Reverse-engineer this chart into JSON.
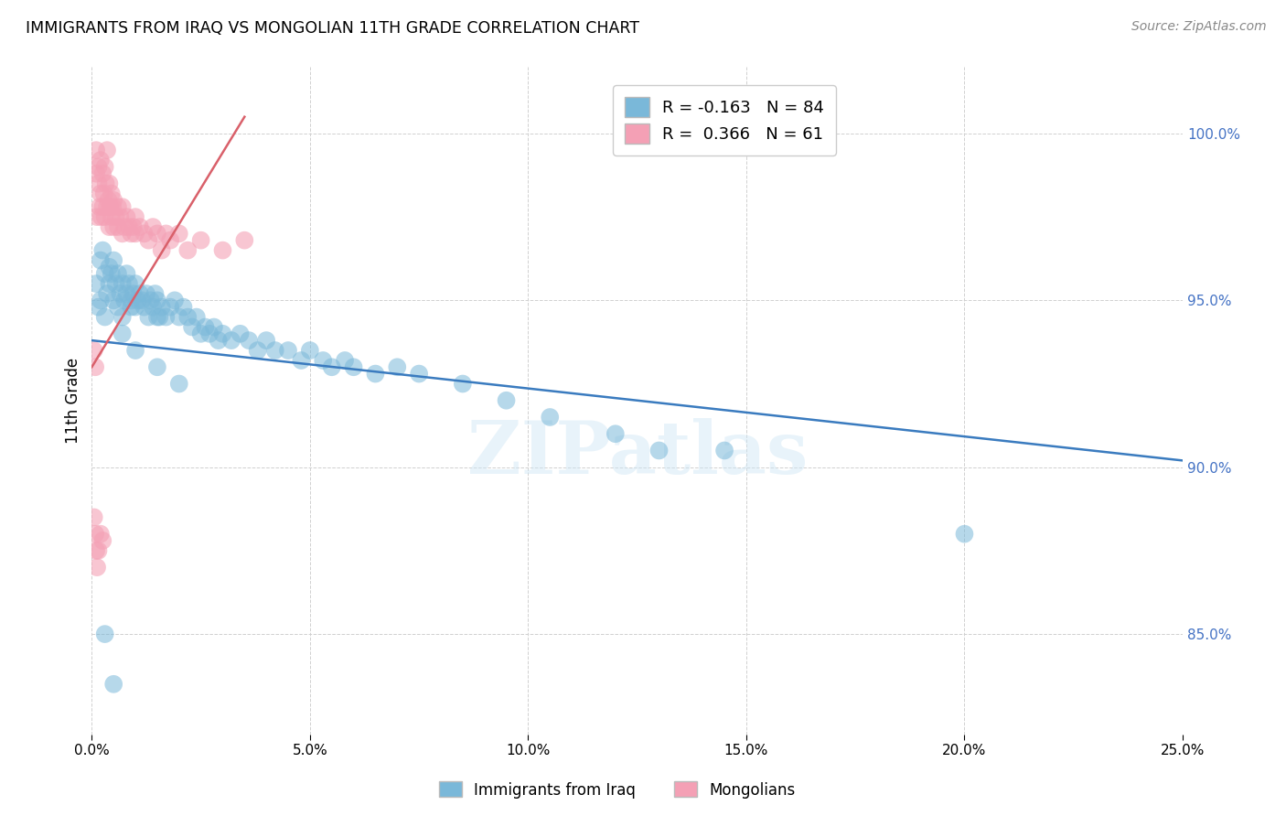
{
  "title": "IMMIGRANTS FROM IRAQ VS MONGOLIAN 11TH GRADE CORRELATION CHART",
  "source": "Source: ZipAtlas.com",
  "ylabel": "11th Grade",
  "ylabel_values": [
    85.0,
    90.0,
    95.0,
    100.0
  ],
  "xlim": [
    0.0,
    25.0
  ],
  "ylim": [
    82.0,
    102.0
  ],
  "legend_blue_r": "-0.163",
  "legend_blue_n": "84",
  "legend_pink_r": "0.366",
  "legend_pink_n": "61",
  "blue_color": "#7ab8d9",
  "pink_color": "#f4a0b5",
  "blue_line_color": "#3a7bbf",
  "pink_line_color": "#d9606a",
  "watermark": "ZIPatlas",
  "blue_scatter_x": [
    0.1,
    0.15,
    0.2,
    0.2,
    0.25,
    0.3,
    0.3,
    0.35,
    0.4,
    0.4,
    0.45,
    0.5,
    0.5,
    0.55,
    0.6,
    0.6,
    0.65,
    0.7,
    0.7,
    0.75,
    0.8,
    0.8,
    0.85,
    0.9,
    0.9,
    0.95,
    1.0,
    1.0,
    1.05,
    1.1,
    1.15,
    1.2,
    1.25,
    1.3,
    1.35,
    1.4,
    1.45,
    1.5,
    1.55,
    1.6,
    1.7,
    1.8,
    1.9,
    2.0,
    2.1,
    2.2,
    2.3,
    2.4,
    2.5,
    2.6,
    2.7,
    2.8,
    2.9,
    3.0,
    3.2,
    3.4,
    3.6,
    3.8,
    4.0,
    4.2,
    4.5,
    4.8,
    5.0,
    5.3,
    5.5,
    5.8,
    6.0,
    6.5,
    7.0,
    7.5,
    1.5,
    2.0,
    8.5,
    9.5,
    10.5,
    12.0,
    13.0,
    14.5,
    20.0,
    0.3,
    0.5,
    0.7,
    1.0,
    1.5
  ],
  "blue_scatter_y": [
    95.5,
    94.8,
    96.2,
    95.0,
    96.5,
    95.8,
    94.5,
    95.2,
    96.0,
    95.5,
    95.8,
    96.2,
    95.0,
    95.5,
    95.8,
    94.8,
    95.2,
    95.5,
    94.5,
    95.0,
    95.8,
    95.2,
    95.5,
    95.0,
    94.8,
    95.2,
    95.5,
    94.8,
    95.0,
    95.2,
    95.0,
    94.8,
    95.2,
    94.5,
    95.0,
    94.8,
    95.2,
    95.0,
    94.5,
    94.8,
    94.5,
    94.8,
    95.0,
    94.5,
    94.8,
    94.5,
    94.2,
    94.5,
    94.0,
    94.2,
    94.0,
    94.2,
    93.8,
    94.0,
    93.8,
    94.0,
    93.8,
    93.5,
    93.8,
    93.5,
    93.5,
    93.2,
    93.5,
    93.2,
    93.0,
    93.2,
    93.0,
    92.8,
    93.0,
    92.8,
    93.0,
    92.5,
    92.5,
    92.0,
    91.5,
    91.0,
    90.5,
    90.5,
    88.0,
    85.0,
    83.5,
    94.0,
    93.5,
    94.5
  ],
  "pink_scatter_x": [
    0.05,
    0.08,
    0.1,
    0.1,
    0.12,
    0.15,
    0.15,
    0.18,
    0.2,
    0.2,
    0.22,
    0.25,
    0.25,
    0.28,
    0.3,
    0.3,
    0.32,
    0.35,
    0.35,
    0.38,
    0.4,
    0.4,
    0.42,
    0.45,
    0.45,
    0.48,
    0.5,
    0.5,
    0.55,
    0.6,
    0.6,
    0.65,
    0.7,
    0.7,
    0.75,
    0.8,
    0.85,
    0.9,
    0.95,
    1.0,
    1.0,
    1.1,
    1.2,
    1.3,
    1.4,
    1.5,
    1.6,
    1.7,
    1.8,
    2.0,
    2.2,
    2.5,
    3.0,
    3.5,
    0.05,
    0.08,
    0.1,
    0.12,
    0.15,
    0.2,
    0.25
  ],
  "pink_scatter_y": [
    93.5,
    93.0,
    99.5,
    98.8,
    97.5,
    99.0,
    98.5,
    97.8,
    99.2,
    98.2,
    97.5,
    98.8,
    97.8,
    98.2,
    99.0,
    97.5,
    98.5,
    99.5,
    97.8,
    98.0,
    98.5,
    97.2,
    97.8,
    98.2,
    97.5,
    97.8,
    98.0,
    97.2,
    97.5,
    97.8,
    97.2,
    97.5,
    97.8,
    97.0,
    97.2,
    97.5,
    97.2,
    97.0,
    97.2,
    97.5,
    97.0,
    97.2,
    97.0,
    96.8,
    97.2,
    97.0,
    96.5,
    97.0,
    96.8,
    97.0,
    96.5,
    96.8,
    96.5,
    96.8,
    88.5,
    88.0,
    87.5,
    87.0,
    87.5,
    88.0,
    87.8
  ]
}
